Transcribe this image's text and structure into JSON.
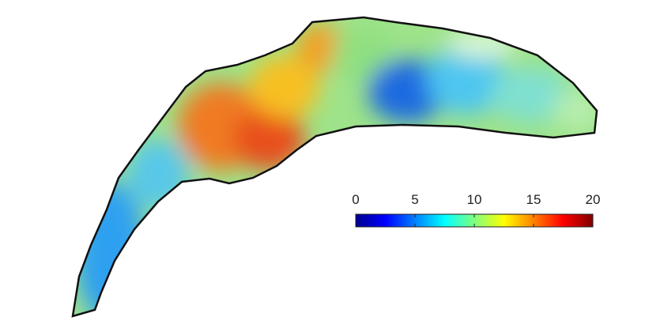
{
  "colorbar": {
    "colormap": "jet",
    "range": [
      0,
      20
    ],
    "ticks": [
      0,
      5,
      10,
      15,
      20
    ]
  }
}
